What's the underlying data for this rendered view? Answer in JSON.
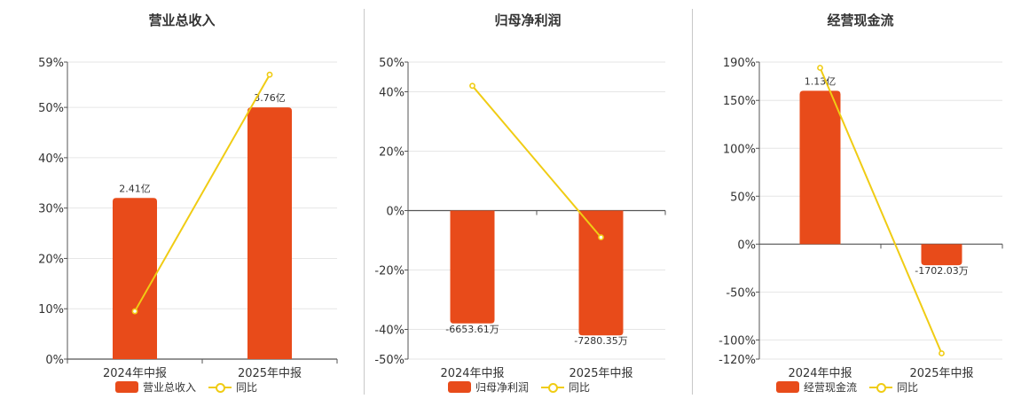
{
  "chart_data": [
    {
      "type": "bar+line",
      "title": "营业总收入",
      "categories": [
        "2024年中报",
        "2025年中报"
      ],
      "bar_series": {
        "name": "营业总收入",
        "labels": [
          "2.41亿",
          "3.76亿"
        ],
        "values_pct_axis": [
          32,
          50
        ]
      },
      "line_series": {
        "name": "同比",
        "values": [
          9.5,
          56.5
        ]
      },
      "ylim": [
        0,
        59
      ],
      "yticks": [
        {
          "v": 0,
          "t": "0%"
        },
        {
          "v": 10,
          "t": "10%"
        },
        {
          "v": 20,
          "t": "20%"
        },
        {
          "v": 30,
          "t": "30%"
        },
        {
          "v": 40,
          "t": "40%"
        },
        {
          "v": 50,
          "t": "50%"
        },
        {
          "v": 59,
          "t": "59%"
        }
      ]
    },
    {
      "type": "bar+line",
      "title": "归母净利润",
      "categories": [
        "2024年中报",
        "2025年中报"
      ],
      "bar_series": {
        "name": "归母净利润",
        "labels": [
          "-6653.61万",
          "-7280.35万"
        ],
        "values_pct_axis": [
          -38,
          -42
        ]
      },
      "line_series": {
        "name": "同比",
        "values": [
          42,
          -9
        ]
      },
      "ylim": [
        -50,
        50
      ],
      "yticks": [
        {
          "v": -50,
          "t": "-50%"
        },
        {
          "v": -40,
          "t": "-40%"
        },
        {
          "v": -20,
          "t": "-20%"
        },
        {
          "v": 0,
          "t": "0%"
        },
        {
          "v": 20,
          "t": "20%"
        },
        {
          "v": 40,
          "t": "40%"
        },
        {
          "v": 50,
          "t": "50%"
        }
      ]
    },
    {
      "type": "bar+line",
      "title": "经营现金流",
      "categories": [
        "2024年中报",
        "2025年中报"
      ],
      "bar_series": {
        "name": "经营现金流",
        "labels": [
          "1.13亿",
          "-1702.03万"
        ],
        "values_pct_axis": [
          160,
          -22
        ]
      },
      "line_series": {
        "name": "同比",
        "values": [
          184,
          -114
        ]
      },
      "ylim": [
        -120,
        190
      ],
      "yticks": [
        {
          "v": -120,
          "t": "-120%"
        },
        {
          "v": -100,
          "t": "-100%"
        },
        {
          "v": -50,
          "t": "-50%"
        },
        {
          "v": 0,
          "t": "0%"
        },
        {
          "v": 50,
          "t": "50%"
        },
        {
          "v": 100,
          "t": "100%"
        },
        {
          "v": 150,
          "t": "150%"
        },
        {
          "v": 190,
          "t": "190%"
        }
      ]
    }
  ],
  "colors": {
    "bar": "#E84B1A",
    "line": "#F0CC14",
    "grid": "#e6e6e6",
    "axis": "#555555"
  }
}
